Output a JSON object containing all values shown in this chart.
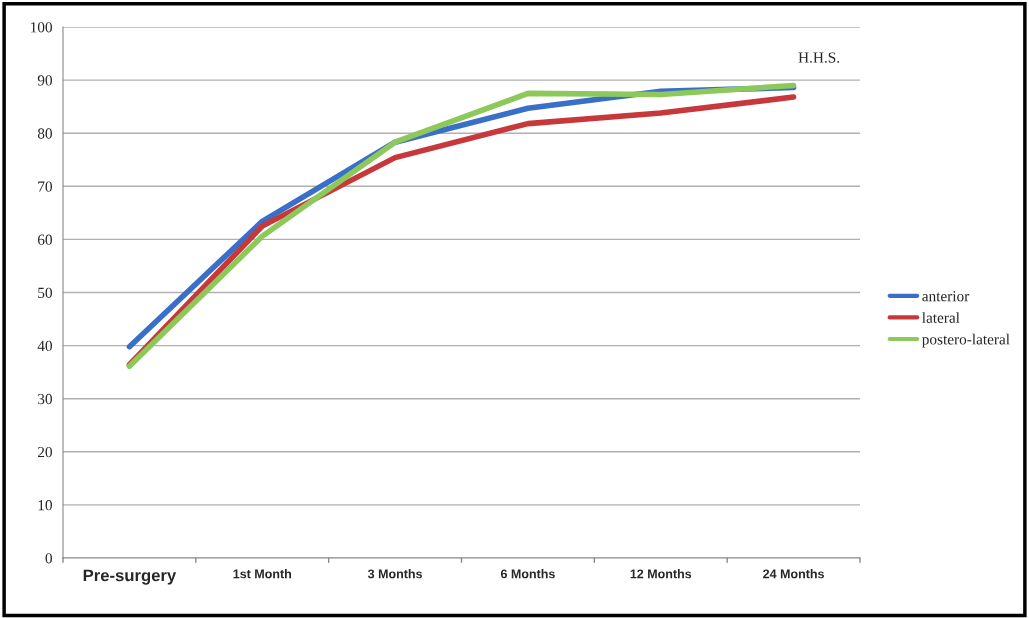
{
  "chart_data": {
    "type": "line",
    "categories": [
      "Pre-surgery",
      "1st Month",
      "3 Months",
      "6 Months",
      "12 Months",
      "24 Months"
    ],
    "series": [
      {
        "name": "anterior",
        "color": "#3a6fc9",
        "values": [
          39.8,
          63.4,
          78.3,
          84.7,
          87.9,
          88.6
        ]
      },
      {
        "name": "lateral",
        "color": "#c8383a",
        "values": [
          36.4,
          62.5,
          75.4,
          81.8,
          83.8,
          86.8
        ]
      },
      {
        "name": "postero-lateral",
        "color": "#8dc85a",
        "values": [
          36.1,
          60.6,
          78.3,
          87.5,
          87.3,
          89.0
        ]
      }
    ],
    "annotations": [
      "H.H.S."
    ],
    "ylim": [
      0,
      100
    ],
    "yticks": [
      0,
      10,
      20,
      30,
      40,
      50,
      60,
      70,
      80,
      90,
      100
    ],
    "grid": "y",
    "legend": "right",
    "marker": "none",
    "line_style": "solid"
  }
}
